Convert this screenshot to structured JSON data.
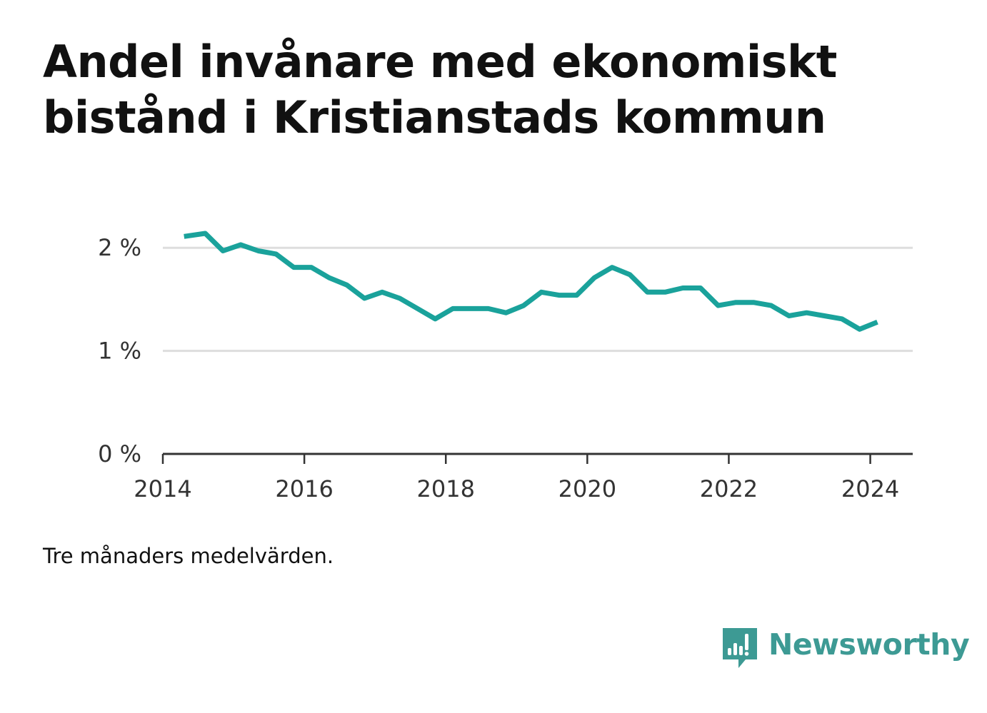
{
  "header": {
    "title": "Andel invånare med ekonomiskt bistånd i Kristianstads kommun"
  },
  "note": "Tre månaders medelvärden.",
  "brand": {
    "name": "Newsworthy",
    "color": "#3d9a94"
  },
  "chart_data": {
    "type": "line",
    "title": "Andel invånare med ekonomiskt bistånd i Kristianstads kommun",
    "xlabel": "",
    "ylabel": "",
    "ylim": [
      0,
      2.5
    ],
    "xlim": [
      2014.0,
      2024.6
    ],
    "grid": true,
    "line_color": "#1aa29b",
    "y_ticks": [
      {
        "value": 0,
        "label": "0 %"
      },
      {
        "value": 1,
        "label": "1 %"
      },
      {
        "value": 2,
        "label": "2 %"
      }
    ],
    "x_ticks": [
      {
        "value": 2014,
        "label": "2014"
      },
      {
        "value": 2016,
        "label": "2016"
      },
      {
        "value": 2018,
        "label": "2018"
      },
      {
        "value": 2020,
        "label": "2020"
      },
      {
        "value": 2022,
        "label": "2022"
      },
      {
        "value": 2024,
        "label": "2024"
      }
    ],
    "series": [
      {
        "values": [
          {
            "x": 2014.3,
            "y": 2.11
          },
          {
            "x": 2014.6,
            "y": 2.14
          },
          {
            "x": 2014.85,
            "y": 1.97
          },
          {
            "x": 2015.1,
            "y": 2.03
          },
          {
            "x": 2015.35,
            "y": 1.97
          },
          {
            "x": 2015.6,
            "y": 1.94
          },
          {
            "x": 2015.85,
            "y": 1.81
          },
          {
            "x": 2016.1,
            "y": 1.81
          },
          {
            "x": 2016.35,
            "y": 1.71
          },
          {
            "x": 2016.6,
            "y": 1.64
          },
          {
            "x": 2016.85,
            "y": 1.51
          },
          {
            "x": 2017.1,
            "y": 1.57
          },
          {
            "x": 2017.35,
            "y": 1.51
          },
          {
            "x": 2017.6,
            "y": 1.41
          },
          {
            "x": 2017.85,
            "y": 1.31
          },
          {
            "x": 2018.1,
            "y": 1.41
          },
          {
            "x": 2018.35,
            "y": 1.41
          },
          {
            "x": 2018.6,
            "y": 1.41
          },
          {
            "x": 2018.85,
            "y": 1.37
          },
          {
            "x": 2019.1,
            "y": 1.44
          },
          {
            "x": 2019.35,
            "y": 1.57
          },
          {
            "x": 2019.6,
            "y": 1.54
          },
          {
            "x": 2019.85,
            "y": 1.54
          },
          {
            "x": 2020.1,
            "y": 1.71
          },
          {
            "x": 2020.35,
            "y": 1.81
          },
          {
            "x": 2020.6,
            "y": 1.74
          },
          {
            "x": 2020.85,
            "y": 1.57
          },
          {
            "x": 2021.1,
            "y": 1.57
          },
          {
            "x": 2021.35,
            "y": 1.61
          },
          {
            "x": 2021.6,
            "y": 1.61
          },
          {
            "x": 2021.85,
            "y": 1.44
          },
          {
            "x": 2022.1,
            "y": 1.47
          },
          {
            "x": 2022.35,
            "y": 1.47
          },
          {
            "x": 2022.6,
            "y": 1.44
          },
          {
            "x": 2022.85,
            "y": 1.34
          },
          {
            "x": 2023.1,
            "y": 1.37
          },
          {
            "x": 2023.35,
            "y": 1.34
          },
          {
            "x": 2023.6,
            "y": 1.31
          },
          {
            "x": 2023.85,
            "y": 1.21
          },
          {
            "x": 2024.1,
            "y": 1.28
          }
        ]
      }
    ]
  }
}
